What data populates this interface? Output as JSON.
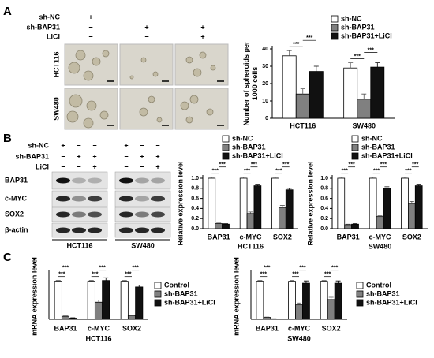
{
  "panel_labels": [
    "A",
    "B",
    "C"
  ],
  "panel_a": {
    "conditions": [
      {
        "label": "sh-NC",
        "signs": [
          "+",
          "−",
          "−"
        ]
      },
      {
        "label": "sh-BAP31",
        "signs": [
          "−",
          "+",
          "+"
        ]
      },
      {
        "label": "LiCl",
        "signs": [
          "−",
          "−",
          "+"
        ]
      }
    ],
    "image_rows": [
      "HCT116",
      "SW480"
    ]
  },
  "panel_b": {
    "conditions": [
      {
        "label": "sh-NC",
        "signs": [
          "+",
          "−",
          "−",
          "+",
          "−",
          "−"
        ]
      },
      {
        "label": "sh-BAP31",
        "signs": [
          "−",
          "+",
          "+",
          "−",
          "+",
          "+"
        ]
      },
      {
        "label": "LiCl",
        "signs": [
          "−",
          "−",
          "+",
          "−",
          "−",
          "+"
        ]
      }
    ],
    "proteins": [
      "BAP31",
      "c-MYC",
      "SOX2",
      "β-actin"
    ],
    "cell_lines": [
      "HCT116",
      "SW480"
    ]
  },
  "chart_data": [
    {
      "type": "bar",
      "ylabel": [
        "Number of spheroids per",
        "1000 cells"
      ],
      "categories": [
        "HCT116",
        "SW480"
      ],
      "series": [
        {
          "name": "sh-NC",
          "color": "#ffffff",
          "values": [
            36,
            29
          ],
          "errors": [
            3,
            3
          ]
        },
        {
          "name": "sh-BAP31",
          "color": "#808080",
          "values": [
            14,
            11
          ],
          "errors": [
            3,
            3
          ]
        },
        {
          "name": "sh-BAP31+LiCl",
          "color": "#111111",
          "values": [
            27,
            29.5
          ],
          "errors": [
            3,
            2.5
          ]
        }
      ],
      "ylim": [
        0,
        40
      ],
      "yticks": [
        0,
        10,
        20,
        30,
        40
      ],
      "annotations": [
        {
          "text": "***",
          "category": 0,
          "pair": [
            0,
            1
          ]
        },
        {
          "text": "***",
          "category": 0,
          "pair": [
            1,
            2
          ]
        },
        {
          "text": "***",
          "category": 1,
          "pair": [
            0,
            1
          ]
        },
        {
          "text": "***",
          "category": 1,
          "pair": [
            1,
            2
          ]
        }
      ]
    },
    {
      "type": "bar",
      "ylabel": [
        "Relative expression level"
      ],
      "xlabel": "HCT116",
      "categories": [
        "BAP31",
        "c-MYC",
        "SOX2"
      ],
      "series": [
        {
          "name": "sh-NC",
          "color": "#ffffff",
          "values": [
            1,
            1,
            1
          ],
          "errors": [
            0.02,
            0.02,
            0.02
          ]
        },
        {
          "name": "sh-BAP31",
          "color": "#808080",
          "values": [
            0.1,
            0.3,
            0.42
          ],
          "errors": [
            0.01,
            0.03,
            0.04
          ]
        },
        {
          "name": "sh-BAP31+LiCl",
          "color": "#111111",
          "values": [
            0.09,
            0.85,
            0.77
          ],
          "errors": [
            0.01,
            0.03,
            0.03
          ]
        }
      ],
      "ylim": [
        0,
        1
      ],
      "yticks": [
        {
          "value": 0,
          "label": "0.0"
        },
        {
          "value": 0.2,
          "label": "0.2"
        },
        {
          "value": 0.4,
          "label": "0.4"
        },
        {
          "value": 0.6,
          "label": "0.6"
        },
        {
          "value": 0.8,
          "label": "0.8"
        },
        {
          "value": 1,
          "label": "1.0"
        }
      ],
      "annotations": [
        {
          "text": "***",
          "category": 0,
          "pair": [
            0,
            1
          ]
        },
        {
          "text": "***",
          "category": 0,
          "pair": [
            1,
            2
          ]
        },
        {
          "text": "***",
          "category": 1,
          "pair": [
            0,
            1
          ]
        },
        {
          "text": "***",
          "category": 1,
          "pair": [
            1,
            2
          ]
        },
        {
          "text": "***",
          "category": 2,
          "pair": [
            0,
            1
          ]
        },
        {
          "text": "***",
          "category": 2,
          "pair": [
            1,
            2
          ]
        }
      ]
    },
    {
      "type": "bar",
      "ylabel": [
        "Relative expression level"
      ],
      "xlabel": "SW480",
      "categories": [
        "BAP31",
        "c-MYC",
        "SOX2"
      ],
      "series": [
        {
          "name": "sh-NC",
          "color": "#ffffff",
          "values": [
            1,
            1,
            1
          ],
          "errors": [
            0.02,
            0.02,
            0.02
          ]
        },
        {
          "name": "sh-BAP31",
          "color": "#808080",
          "values": [
            0.08,
            0.24,
            0.5
          ],
          "errors": [
            0.01,
            0.02,
            0.04
          ]
        },
        {
          "name": "sh-BAP31+LiCl",
          "color": "#111111",
          "values": [
            0.09,
            0.8,
            0.85
          ],
          "errors": [
            0.01,
            0.03,
            0.03
          ]
        }
      ],
      "ylim": [
        0,
        1
      ],
      "yticks": [
        {
          "value": 0,
          "label": "0.0"
        },
        {
          "value": 0.2,
          "label": "0.2"
        },
        {
          "value": 0.4,
          "label": "0.4"
        },
        {
          "value": 0.6,
          "label": "0.6"
        },
        {
          "value": 0.8,
          "label": "0.8"
        },
        {
          "value": 1,
          "label": "1.0"
        }
      ],
      "annotations": [
        {
          "text": "***",
          "category": 0,
          "pair": [
            0,
            1
          ]
        },
        {
          "text": "***",
          "category": 0,
          "pair": [
            1,
            2
          ]
        },
        {
          "text": "***",
          "category": 1,
          "pair": [
            0,
            1
          ]
        },
        {
          "text": "***",
          "category": 1,
          "pair": [
            1,
            2
          ]
        },
        {
          "text": "***",
          "category": 2,
          "pair": [
            0,
            1
          ]
        },
        {
          "text": "***",
          "category": 2,
          "pair": [
            1,
            2
          ]
        }
      ]
    },
    {
      "type": "bar",
      "ylabel": [
        "mRNA expression level"
      ],
      "xlabel": "HCT116",
      "categories": [
        "BAP31",
        "c-MYC",
        "SOX2"
      ],
      "series": [
        {
          "name": "Control",
          "color": "#ffffff",
          "values": [
            1,
            1,
            1
          ],
          "errors": [
            0.02,
            0.02,
            0.02
          ]
        },
        {
          "name": "sh-BAP31",
          "color": "#808080",
          "values": [
            0.08,
            0.45,
            0.1
          ],
          "errors": [
            0.01,
            0.06,
            0.01
          ]
        },
        {
          "name": "sh-BAP31+LiCl",
          "color": "#111111",
          "values": [
            0.03,
            1.02,
            0.85
          ],
          "errors": [
            0.01,
            0.07,
            0.05
          ]
        }
      ],
      "ylim": [
        0,
        1.2
      ],
      "annotations": [
        {
          "text": "***",
          "category": 0,
          "pair": [
            0,
            1
          ]
        },
        {
          "text": "***",
          "category": 0,
          "pair": [
            0,
            2
          ]
        },
        {
          "text": "***",
          "category": 1,
          "pair": [
            0,
            1
          ]
        },
        {
          "text": "***",
          "category": 1,
          "pair": [
            1,
            2
          ]
        },
        {
          "text": "***",
          "category": 2,
          "pair": [
            0,
            1
          ]
        },
        {
          "text": "***",
          "category": 2,
          "pair": [
            1,
            2
          ]
        }
      ]
    },
    {
      "type": "bar",
      "ylabel": [
        "mRNA expression level"
      ],
      "xlabel": "SW480",
      "categories": [
        "BAP31",
        "c-MYC",
        "SOX2"
      ],
      "series": [
        {
          "name": "Control",
          "color": "#ffffff",
          "values": [
            1,
            1,
            1
          ],
          "errors": [
            0.02,
            0.02,
            0.02
          ]
        },
        {
          "name": "sh-BAP31",
          "color": "#808080",
          "values": [
            0.05,
            0.38,
            0.52
          ],
          "errors": [
            0.01,
            0.05,
            0.06
          ]
        },
        {
          "name": "sh-BAP31+LiCl",
          "color": "#111111",
          "values": [
            0.01,
            0.95,
            0.95
          ],
          "errors": [
            0.005,
            0.06,
            0.06
          ]
        }
      ],
      "ylim": [
        0,
        1.2
      ],
      "annotations": [
        {
          "text": "***",
          "category": 0,
          "pair": [
            0,
            1
          ]
        },
        {
          "text": "***",
          "category": 0,
          "pair": [
            0,
            2
          ]
        },
        {
          "text": "***",
          "category": 1,
          "pair": [
            0,
            1
          ]
        },
        {
          "text": "***",
          "category": 1,
          "pair": [
            1,
            2
          ]
        },
        {
          "text": "***",
          "category": 2,
          "pair": [
            0,
            1
          ]
        },
        {
          "text": "***",
          "category": 2,
          "pair": [
            1,
            2
          ]
        }
      ]
    }
  ]
}
